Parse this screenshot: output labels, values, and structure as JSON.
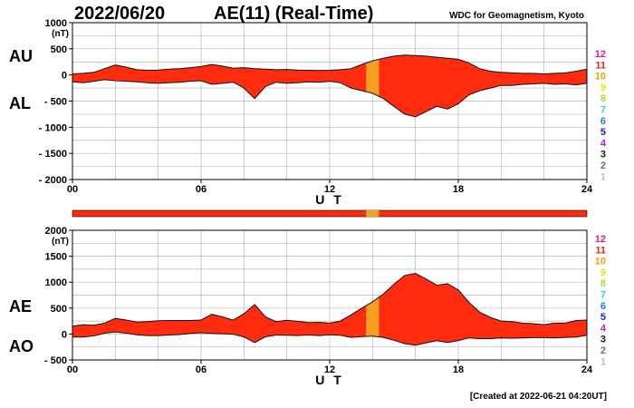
{
  "header": {
    "date": "2022/06/20",
    "title": "AE(11) (Real-Time)",
    "source": "WDC for Geomagnetism, Kyoto"
  },
  "footer": {
    "created": "[Created at 2022-06-21 04:20UT]"
  },
  "station_scale": {
    "labels": [
      "12",
      "11",
      "10",
      "9",
      "8",
      "7",
      "6",
      "5",
      "4",
      "3",
      "2",
      "1"
    ],
    "colors": [
      "#e8187c",
      "#e82020",
      "#f0a000",
      "#e8e800",
      "#a0e020",
      "#30d8c0",
      "#2080e0",
      "#2020c0",
      "#c020c0",
      "#202020",
      "#707070",
      "#c0c0c0"
    ]
  },
  "colors": {
    "fill_main": "#ff2c10",
    "fill_alt": "#f5a020",
    "line": "#111111",
    "grid": "#b8b8b8"
  },
  "chart_data": [
    {
      "type": "area",
      "unit": "(nT)",
      "xlabel": "U T",
      "xticks": [
        "00",
        "06",
        "12",
        "18",
        "24"
      ],
      "xlim": [
        0,
        24
      ],
      "ylim": [
        -2000,
        1000
      ],
      "yticks": [
        "1000",
        "500",
        "0",
        "- 500",
        "- 1000",
        "- 1500",
        "- 2000"
      ],
      "grid": true,
      "series": [
        {
          "name": "AU",
          "x": [
            0,
            0.5,
            1,
            1.5,
            2,
            2.5,
            3,
            3.5,
            4,
            4.5,
            5,
            5.5,
            6,
            6.5,
            7,
            7.5,
            8,
            8.5,
            9,
            9.5,
            10,
            10.5,
            11,
            11.5,
            12,
            12.5,
            13,
            13.5,
            14,
            14.5,
            15,
            15.5,
            16,
            16.5,
            17,
            17.5,
            18,
            18.5,
            19,
            19.5,
            20,
            20.5,
            21,
            21.5,
            22,
            22.5,
            23,
            23.5,
            24
          ],
          "values": [
            20,
            30,
            50,
            120,
            190,
            150,
            100,
            90,
            95,
            110,
            120,
            140,
            160,
            200,
            170,
            130,
            140,
            120,
            110,
            100,
            105,
            95,
            90,
            85,
            90,
            100,
            120,
            200,
            270,
            320,
            360,
            380,
            370,
            360,
            340,
            320,
            300,
            230,
            120,
            70,
            50,
            40,
            30,
            30,
            20,
            30,
            40,
            70,
            110
          ]
        },
        {
          "name": "AL",
          "x": [
            0,
            0.5,
            1,
            1.5,
            2,
            2.5,
            3,
            3.5,
            4,
            4.5,
            5,
            5.5,
            6,
            6.5,
            7,
            7.5,
            8,
            8.5,
            9,
            9.5,
            10,
            10.5,
            11,
            11.5,
            12,
            12.5,
            13,
            13.5,
            14,
            14.5,
            15,
            15.5,
            16,
            16.5,
            17,
            17.5,
            18,
            18.5,
            19,
            19.5,
            20,
            20.5,
            21,
            21.5,
            22,
            22.5,
            23,
            23.5,
            24
          ],
          "values": [
            -130,
            -150,
            -120,
            -90,
            -110,
            -120,
            -130,
            -150,
            -160,
            -150,
            -140,
            -120,
            -110,
            -180,
            -160,
            -140,
            -250,
            -450,
            -220,
            -140,
            -160,
            -150,
            -130,
            -140,
            -120,
            -150,
            -250,
            -300,
            -350,
            -450,
            -600,
            -750,
            -800,
            -700,
            -600,
            -650,
            -550,
            -380,
            -300,
            -250,
            -200,
            -200,
            -180,
            -170,
            -160,
            -180,
            -170,
            -190,
            -160
          ]
        }
      ]
    },
    {
      "type": "area",
      "unit": "(nT)",
      "xlabel": "U T",
      "xticks": [
        "00",
        "06",
        "12",
        "18",
        "24"
      ],
      "xlim": [
        0,
        24
      ],
      "ylim": [
        -500,
        2000
      ],
      "yticks": [
        "2000",
        "1500",
        "1000",
        "500",
        "0",
        "- 500"
      ],
      "grid": true,
      "series": [
        {
          "name": "AE",
          "x": [
            0,
            0.5,
            1,
            1.5,
            2,
            2.5,
            3,
            3.5,
            4,
            4.5,
            5,
            5.5,
            6,
            6.5,
            7,
            7.5,
            8,
            8.5,
            9,
            9.5,
            10,
            10.5,
            11,
            11.5,
            12,
            12.5,
            13,
            13.5,
            14,
            14.5,
            15,
            15.5,
            16,
            16.5,
            17,
            17.5,
            18,
            18.5,
            19,
            19.5,
            20,
            20.5,
            21,
            21.5,
            22,
            22.5,
            23,
            23.5,
            24
          ],
          "values": [
            150,
            180,
            170,
            210,
            300,
            270,
            230,
            240,
            255,
            260,
            260,
            260,
            270,
            380,
            330,
            270,
            390,
            570,
            330,
            240,
            265,
            245,
            220,
            225,
            210,
            250,
            370,
            500,
            620,
            770,
            960,
            1130,
            1170,
            1060,
            940,
            970,
            850,
            610,
            420,
            320,
            250,
            240,
            210,
            200,
            180,
            210,
            210,
            260,
            270
          ]
        },
        {
          "name": "AO",
          "x": [
            0,
            0.5,
            1,
            1.5,
            2,
            2.5,
            3,
            3.5,
            4,
            4.5,
            5,
            5.5,
            6,
            6.5,
            7,
            7.5,
            8,
            8.5,
            9,
            9.5,
            10,
            10.5,
            11,
            11.5,
            12,
            12.5,
            13,
            13.5,
            14,
            14.5,
            15,
            15.5,
            16,
            16.5,
            17,
            17.5,
            18,
            18.5,
            19,
            19.5,
            20,
            20.5,
            21,
            21.5,
            22,
            22.5,
            23,
            23.5,
            24
          ],
          "values": [
            -60,
            -60,
            -35,
            15,
            40,
            15,
            -15,
            -30,
            -30,
            -20,
            -10,
            10,
            25,
            10,
            5,
            -5,
            -55,
            -165,
            -55,
            -20,
            -25,
            -30,
            -20,
            -30,
            -15,
            -25,
            -65,
            -50,
            -40,
            -65,
            -120,
            -185,
            -215,
            -170,
            -130,
            -165,
            -125,
            -75,
            -90,
            -90,
            -75,
            -80,
            -75,
            -70,
            -70,
            -75,
            -65,
            -60,
            -25
          ]
        }
      ]
    }
  ]
}
